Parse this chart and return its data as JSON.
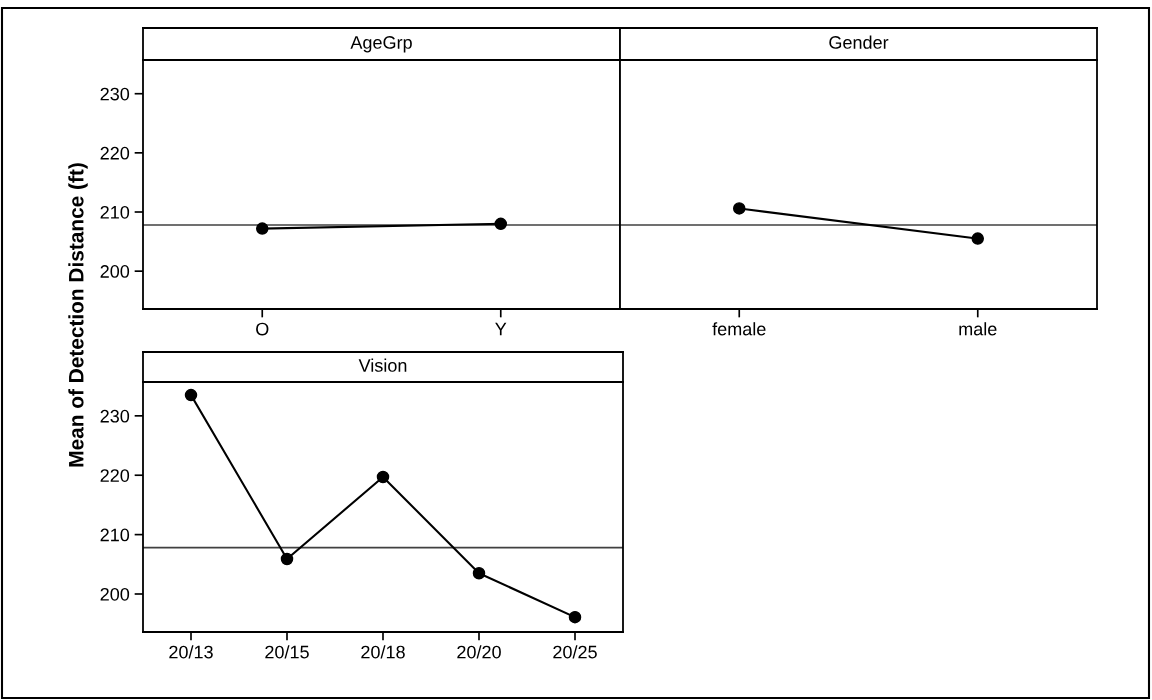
{
  "chart_data": [
    {
      "type": "line",
      "title": "AgeGrp",
      "ylabel": "Mean of Detection Distance (ft)",
      "categories": [
        "O",
        "Y"
      ],
      "values": [
        207.2,
        208.0
      ],
      "color": "#000000",
      "marker": "circle",
      "ylim": [
        193.6,
        235.7
      ],
      "yticks": [
        200,
        210,
        220,
        230
      ],
      "ref_lines": [
        {
          "axis": "y",
          "value": 207.8,
          "color": "#404040"
        }
      ]
    },
    {
      "type": "line",
      "title": "Gender",
      "categories": [
        "female",
        "male"
      ],
      "values": [
        210.6,
        205.5
      ],
      "color": "#000000",
      "marker": "circle",
      "ylim": [
        193.6,
        235.7
      ],
      "yticks": [
        200,
        210,
        220,
        230
      ],
      "tick_labels": "x",
      "ref_lines": [
        {
          "axis": "y",
          "value": 207.8,
          "color": "#404040"
        }
      ]
    },
    {
      "type": "line",
      "title": "Vision",
      "categories": [
        "20/13",
        "20/15",
        "20/18",
        "20/20",
        "20/25"
      ],
      "values": [
        233.5,
        205.9,
        219.7,
        203.5,
        196.1
      ],
      "color": "#000000",
      "marker": "circle",
      "ylim": [
        193.6,
        235.7
      ],
      "yticks": [
        200,
        210,
        220,
        230
      ],
      "ref_lines": [
        {
          "axis": "y",
          "value": 207.8,
          "color": "#404040"
        }
      ]
    }
  ]
}
